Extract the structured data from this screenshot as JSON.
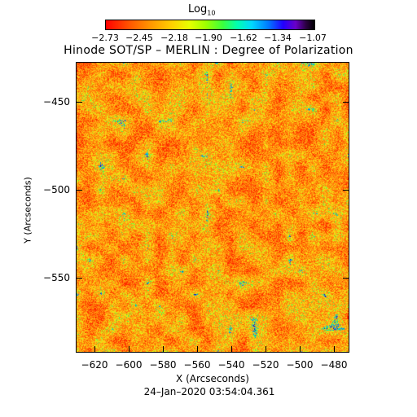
{
  "colorbar": {
    "label_main": "Log",
    "label_sub": "10",
    "ticks": [
      "−2.73",
      "−2.45",
      "−2.18",
      "−1.90",
      "−1.62",
      "−1.34",
      "−1.07"
    ]
  },
  "title": "Hinode SOT/SP – MERLIN : Degree of Polarization",
  "axes": {
    "y_label": "Y (Arcseconds)",
    "x_label": "X (Arcseconds)",
    "y_ticks": [
      "−450",
      "−500",
      "−550"
    ],
    "x_ticks": [
      "−620",
      "−600",
      "−580",
      "−560",
      "−540",
      "−520",
      "−500",
      "−480"
    ]
  },
  "timestamp": "24–Jan–2020 03:54:04.361"
}
